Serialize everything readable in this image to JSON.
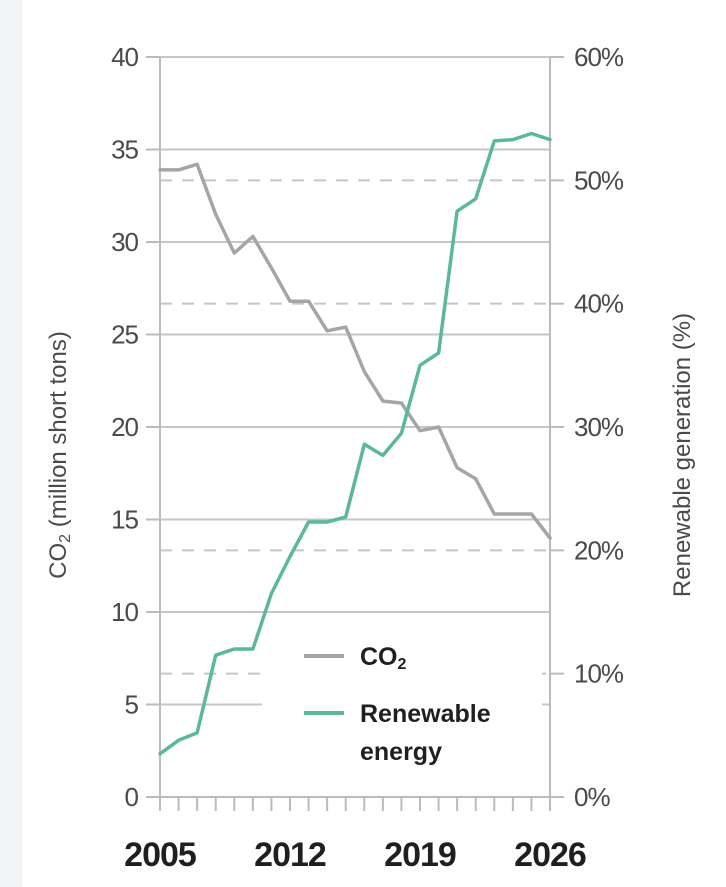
{
  "chart_data": {
    "type": "line",
    "x_ticks": [
      "2005",
      "2012",
      "2019",
      "2026"
    ],
    "xlim": [
      2005,
      2026
    ],
    "ylabel_left": "CO₂ (million short tons)",
    "ylabel_right": "Renewable generation (%)",
    "ylim_left": [
      0,
      40
    ],
    "ylim_right": [
      0,
      60
    ],
    "y_ticks_left": [
      "0",
      "5",
      "10",
      "15",
      "20",
      "25",
      "30",
      "35",
      "40"
    ],
    "y_ticks_right": [
      "0%",
      "10%",
      "20%",
      "30%",
      "40%",
      "50%",
      "60%"
    ],
    "legend": {
      "placement": "bottom-center",
      "entries": [
        "CO₂",
        "Renewable energy"
      ]
    },
    "series": [
      {
        "name": "CO₂",
        "axis": "left",
        "color": "#a3a6a9",
        "points": [
          [
            2005,
            33.9
          ],
          [
            2006,
            33.9
          ],
          [
            2007,
            34.2
          ],
          [
            2008,
            31.5
          ],
          [
            2009,
            29.4
          ],
          [
            2010,
            30.3
          ],
          [
            2011,
            28.6
          ],
          [
            2012,
            26.8
          ],
          [
            2013,
            26.8
          ],
          [
            2014,
            25.2
          ],
          [
            2015,
            25.4
          ],
          [
            2016,
            23.0
          ],
          [
            2017,
            21.4
          ],
          [
            2018,
            21.3
          ],
          [
            2019,
            19.8
          ],
          [
            2020,
            20.0
          ],
          [
            2021,
            17.8
          ],
          [
            2022,
            17.2
          ],
          [
            2023,
            15.3
          ],
          [
            2024,
            15.3
          ],
          [
            2025,
            15.3
          ],
          [
            2026,
            14.0
          ]
        ]
      },
      {
        "name": "Renewable energy",
        "axis": "right",
        "color": "#5bb89a",
        "points": [
          [
            2005,
            3.5
          ],
          [
            2006,
            4.6
          ],
          [
            2007,
            5.2
          ],
          [
            2008,
            11.5
          ],
          [
            2009,
            12.0
          ],
          [
            2010,
            12.0
          ],
          [
            2011,
            16.5
          ],
          [
            2012,
            19.5
          ],
          [
            2013,
            22.3
          ],
          [
            2014,
            22.3
          ],
          [
            2015,
            22.7
          ],
          [
            2016,
            28.6
          ],
          [
            2017,
            27.7
          ],
          [
            2018,
            29.5
          ],
          [
            2019,
            35.0
          ],
          [
            2020,
            36.0
          ],
          [
            2021,
            47.5
          ],
          [
            2022,
            48.5
          ],
          [
            2023,
            53.2
          ],
          [
            2024,
            53.3
          ],
          [
            2025,
            53.8
          ],
          [
            2026,
            53.3
          ]
        ]
      }
    ]
  },
  "legend": {
    "co2_label": "CO",
    "co2_sub": "2",
    "renewable_line1": "Renewable",
    "renewable_line2": "energy"
  },
  "axis_titles": {
    "left_main": "CO",
    "left_sub": "2",
    "left_rest": " (million short tons)",
    "right": "Renewable generation (%)"
  }
}
